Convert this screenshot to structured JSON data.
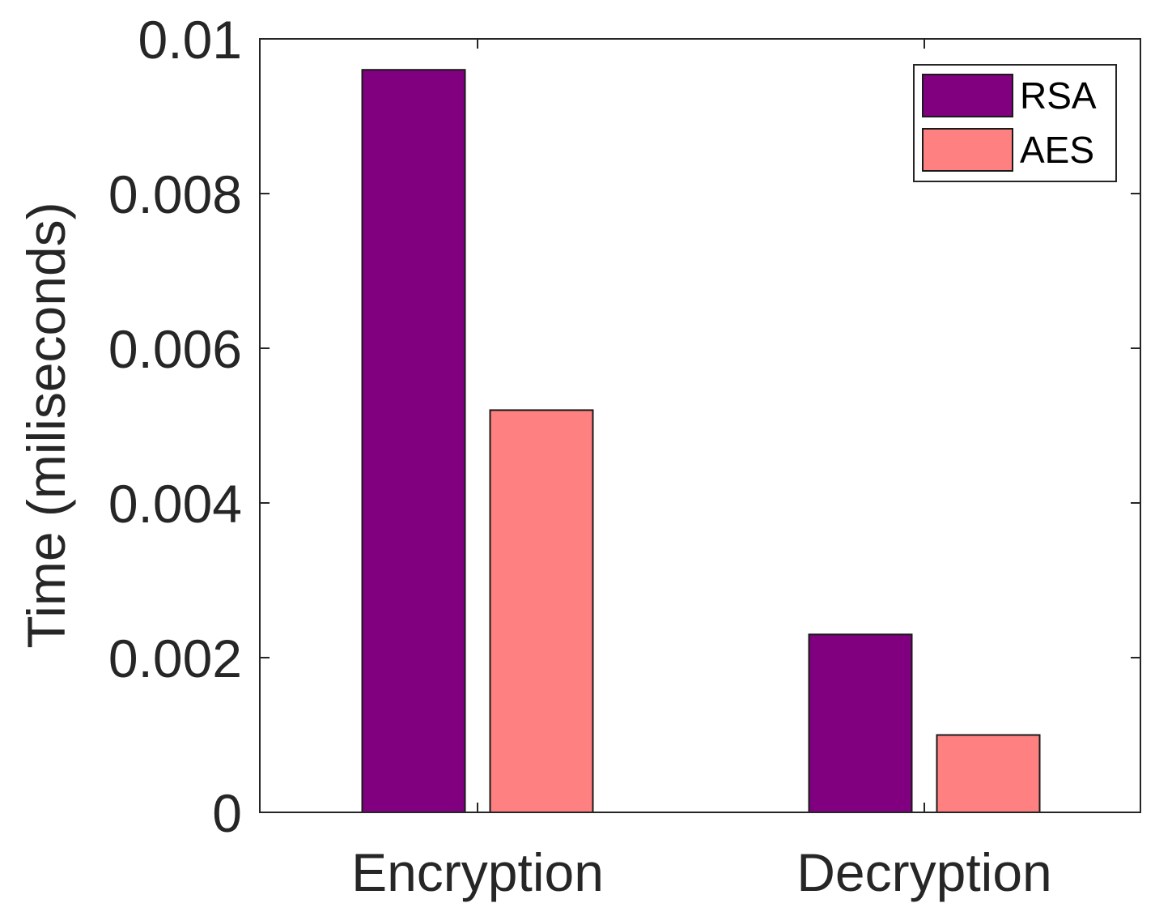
{
  "chart_data": {
    "type": "bar",
    "categories": [
      "Encryption",
      "Decryption"
    ],
    "series": [
      {
        "name": "RSA",
        "values": [
          0.0096,
          0.0023
        ],
        "color": "#800080"
      },
      {
        "name": "AES",
        "values": [
          0.0052,
          0.001
        ],
        "color": "#FF8080"
      }
    ],
    "ylabel": "Time (miliseconds)",
    "xlabel": "",
    "ylim": [
      0,
      0.01
    ],
    "yticks": [
      "0",
      "0.002",
      "0.004",
      "0.006",
      "0.008",
      "0.01"
    ],
    "ytick_values": [
      0,
      0.002,
      0.004,
      0.006,
      0.008,
      0.01
    ],
    "grid": false,
    "legend_position": "top-right"
  }
}
